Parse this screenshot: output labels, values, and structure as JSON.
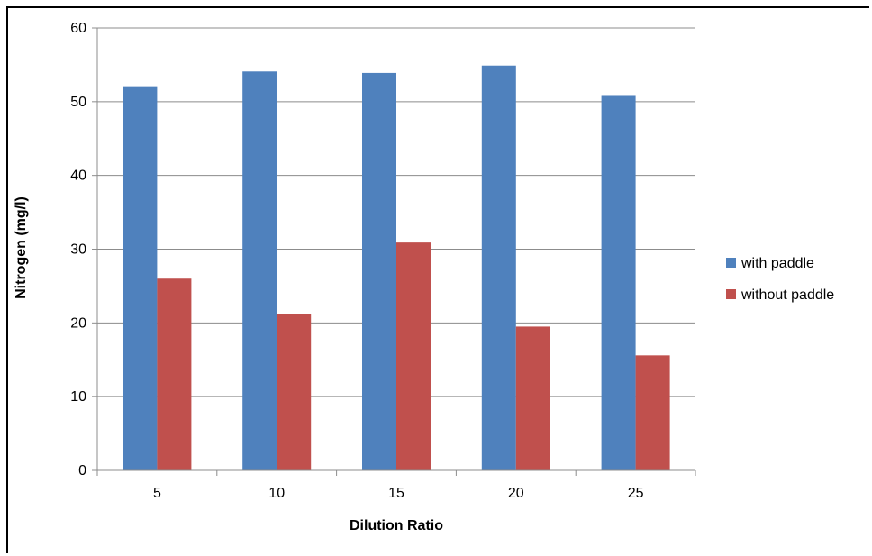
{
  "chart_data": {
    "type": "bar",
    "title": "",
    "xlabel": "Dilution Ratio",
    "ylabel": "Nitrogen (mg/l)",
    "categories": [
      "5",
      "10",
      "15",
      "20",
      "25"
    ],
    "series": [
      {
        "name": "with paddle",
        "color": "#4f81bd",
        "values": [
          52.1,
          54.1,
          53.9,
          54.9,
          50.9
        ]
      },
      {
        "name": "without paddle",
        "color": "#c0504d",
        "values": [
          26.0,
          21.2,
          30.9,
          19.5,
          15.6
        ]
      }
    ],
    "ylim": [
      0,
      60
    ],
    "yticks": [
      "0",
      "10",
      "20",
      "30",
      "40",
      "50",
      "60"
    ],
    "grid": true,
    "legend_position": "right"
  }
}
